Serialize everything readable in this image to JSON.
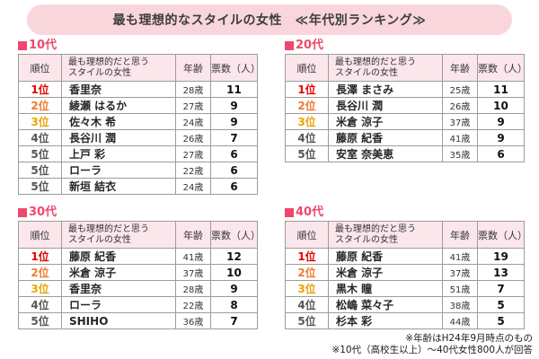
{
  "title": "最も理想的なスタイルの女性　≪年代別ランキング≫",
  "columns": {
    "rank": "順位",
    "name_line1": "最も理想的だと思う",
    "name_line2": "スタイルの女性",
    "age": "年齢",
    "votes": "票数（人）"
  },
  "tables": [
    {
      "label": "10代",
      "rows": [
        {
          "rank": "1位",
          "name": "香里奈",
          "age": "28歳",
          "votes": "11"
        },
        {
          "rank": "2位",
          "name": "綾瀬 はるか",
          "age": "27歳",
          "votes": "9"
        },
        {
          "rank": "3位",
          "name": "佐々木 希",
          "age": "24歳",
          "votes": "9"
        },
        {
          "rank": "4位",
          "name": "長谷川 潤",
          "age": "26歳",
          "votes": "7"
        },
        {
          "rank": "5位",
          "name": "上戸 彩",
          "age": "27歳",
          "votes": "6"
        },
        {
          "rank": "5位",
          "name": "ローラ",
          "age": "22歳",
          "votes": "6"
        },
        {
          "rank": "5位",
          "name": "新垣 結衣",
          "age": "24歳",
          "votes": "6"
        }
      ]
    },
    {
      "label": "20代",
      "rows": [
        {
          "rank": "1位",
          "name": "長澤 まさみ",
          "age": "25歳",
          "votes": "11"
        },
        {
          "rank": "2位",
          "name": "長谷川 潤",
          "age": "26歳",
          "votes": "10"
        },
        {
          "rank": "3位",
          "name": "米倉 涼子",
          "age": "37歳",
          "votes": "9"
        },
        {
          "rank": "4位",
          "name": "藤原 紀香",
          "age": "41歳",
          "votes": "9"
        },
        {
          "rank": "5位",
          "name": "安室 奈美恵",
          "age": "35歳",
          "votes": "6"
        }
      ]
    },
    {
      "label": "30代",
      "rows": [
        {
          "rank": "1位",
          "name": "藤原 紀香",
          "age": "41歳",
          "votes": "12"
        },
        {
          "rank": "2位",
          "name": "米倉 涼子",
          "age": "37歳",
          "votes": "10"
        },
        {
          "rank": "3位",
          "name": "香里奈",
          "age": "28歳",
          "votes": "9"
        },
        {
          "rank": "4位",
          "name": "ローラ",
          "age": "22歳",
          "votes": "8"
        },
        {
          "rank": "5位",
          "name": "SHIHO",
          "age": "36歳",
          "votes": "7"
        }
      ]
    },
    {
      "label": "40代",
      "rows": [
        {
          "rank": "1位",
          "name": "藤原 紀香",
          "age": "41歳",
          "votes": "19"
        },
        {
          "rank": "2位",
          "name": "米倉 涼子",
          "age": "37歳",
          "votes": "13"
        },
        {
          "rank": "3位",
          "name": "黒木 瞳",
          "age": "51歳",
          "votes": "7"
        },
        {
          "rank": "4位",
          "name": "松嶋 菜々子",
          "age": "38歳",
          "votes": "5"
        },
        {
          "rank": "5位",
          "name": "杉本 彩",
          "age": "44歳",
          "votes": "5"
        }
      ]
    }
  ],
  "notes": [
    "※年齢はH24年9月時点のもの",
    "※10代（高校生以上）～40代女性800人が回答"
  ],
  "colors": {
    "banner_bg": "#f9d6db",
    "header_bg": "#fbe6eb",
    "accent_pink": "#f0476e",
    "rank1": "#e60000",
    "rank2": "#ef7a2e",
    "rank3": "#e9a404",
    "rank_other": "#555555"
  }
}
